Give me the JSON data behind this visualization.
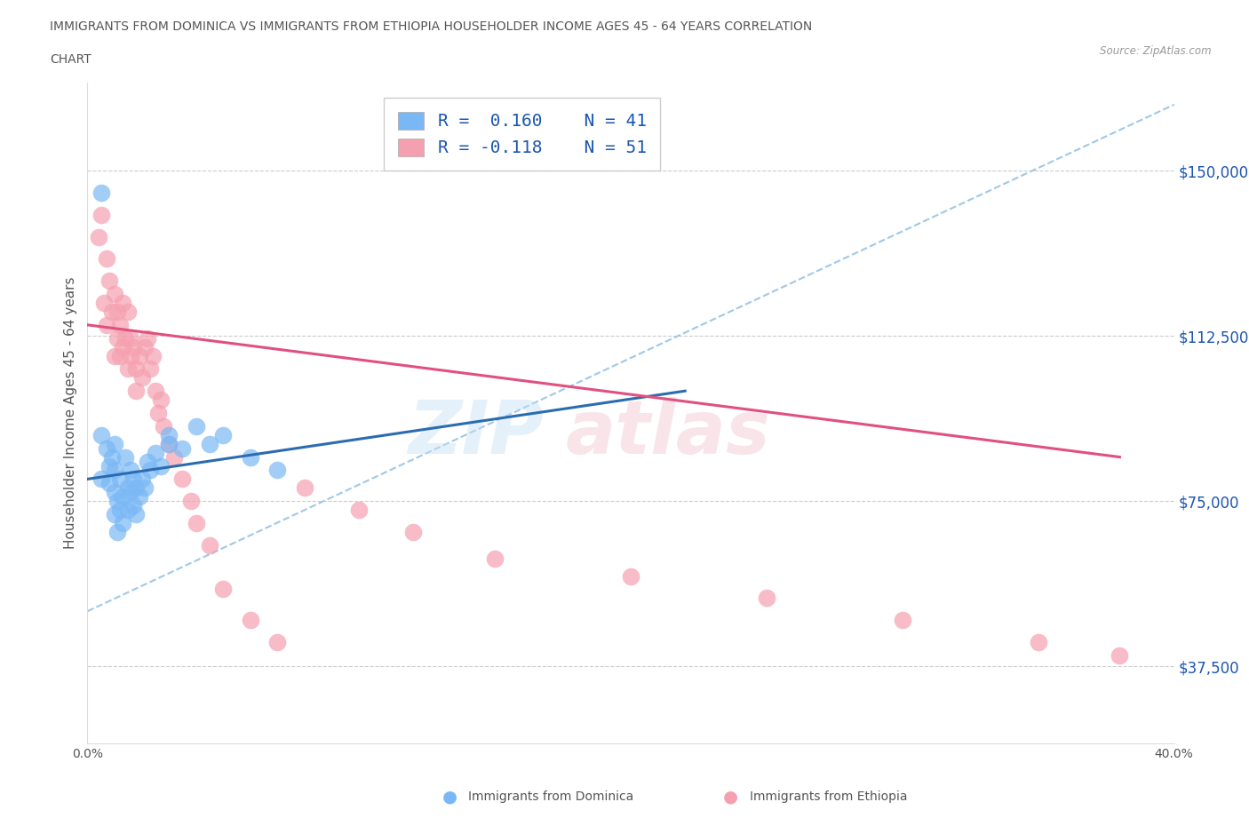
{
  "title_line1": "IMMIGRANTS FROM DOMINICA VS IMMIGRANTS FROM ETHIOPIA HOUSEHOLDER INCOME AGES 45 - 64 YEARS CORRELATION",
  "title_line2": "CHART",
  "source": "Source: ZipAtlas.com",
  "ylabel": "Householder Income Ages 45 - 64 years",
  "xlim": [
    0.0,
    0.4
  ],
  "ylim": [
    20000,
    170000
  ],
  "x_ticks": [
    0.0,
    0.05,
    0.1,
    0.15,
    0.2,
    0.25,
    0.3,
    0.35,
    0.4
  ],
  "x_tick_labels": [
    "0.0%",
    "",
    "",
    "",
    "",
    "",
    "",
    "",
    "40.0%"
  ],
  "y_ticks": [
    37500,
    75000,
    112500,
    150000
  ],
  "y_tick_labels": [
    "$37,500",
    "$75,000",
    "$112,500",
    "$150,000"
  ],
  "R_dominica": 0.16,
  "N_dominica": 41,
  "R_ethiopia": -0.118,
  "N_ethiopia": 51,
  "color_dominica": "#7ab8f5",
  "color_ethiopia": "#f5a0b0",
  "trendline_color_dominica": "#2b6cb0",
  "trendline_color_ethiopia": "#e05080",
  "dashed_line_color": "#a0c8e8",
  "legend_R_color": "#1a56b0",
  "dominica_x": [
    0.005,
    0.005,
    0.005,
    0.007,
    0.008,
    0.008,
    0.009,
    0.01,
    0.01,
    0.01,
    0.01,
    0.011,
    0.011,
    0.012,
    0.012,
    0.013,
    0.013,
    0.014,
    0.015,
    0.015,
    0.016,
    0.016,
    0.017,
    0.017,
    0.018,
    0.018,
    0.019,
    0.02,
    0.021,
    0.022,
    0.023,
    0.025,
    0.027,
    0.03,
    0.03,
    0.035,
    0.04,
    0.045,
    0.05,
    0.06,
    0.07
  ],
  "dominica_y": [
    145000,
    90000,
    80000,
    87000,
    83000,
    79000,
    85000,
    88000,
    82000,
    77000,
    72000,
    75000,
    68000,
    80000,
    73000,
    76000,
    70000,
    85000,
    78000,
    73000,
    82000,
    77000,
    80000,
    74000,
    78000,
    72000,
    76000,
    80000,
    78000,
    84000,
    82000,
    86000,
    83000,
    88000,
    90000,
    87000,
    92000,
    88000,
    90000,
    85000,
    82000
  ],
  "ethiopia_x": [
    0.004,
    0.005,
    0.006,
    0.007,
    0.007,
    0.008,
    0.009,
    0.01,
    0.01,
    0.011,
    0.011,
    0.012,
    0.012,
    0.013,
    0.013,
    0.014,
    0.015,
    0.015,
    0.016,
    0.016,
    0.017,
    0.018,
    0.018,
    0.019,
    0.02,
    0.021,
    0.022,
    0.023,
    0.024,
    0.025,
    0.026,
    0.027,
    0.028,
    0.03,
    0.032,
    0.035,
    0.038,
    0.04,
    0.045,
    0.05,
    0.06,
    0.07,
    0.08,
    0.1,
    0.12,
    0.15,
    0.2,
    0.25,
    0.3,
    0.35,
    0.38
  ],
  "ethiopia_y": [
    135000,
    140000,
    120000,
    130000,
    115000,
    125000,
    118000,
    122000,
    108000,
    118000,
    112000,
    115000,
    108000,
    120000,
    110000,
    112000,
    118000,
    105000,
    108000,
    112000,
    110000,
    105000,
    100000,
    108000,
    103000,
    110000,
    112000,
    105000,
    108000,
    100000,
    95000,
    98000,
    92000,
    88000,
    85000,
    80000,
    75000,
    70000,
    65000,
    55000,
    48000,
    43000,
    78000,
    73000,
    68000,
    62000,
    58000,
    53000,
    48000,
    43000,
    40000
  ]
}
